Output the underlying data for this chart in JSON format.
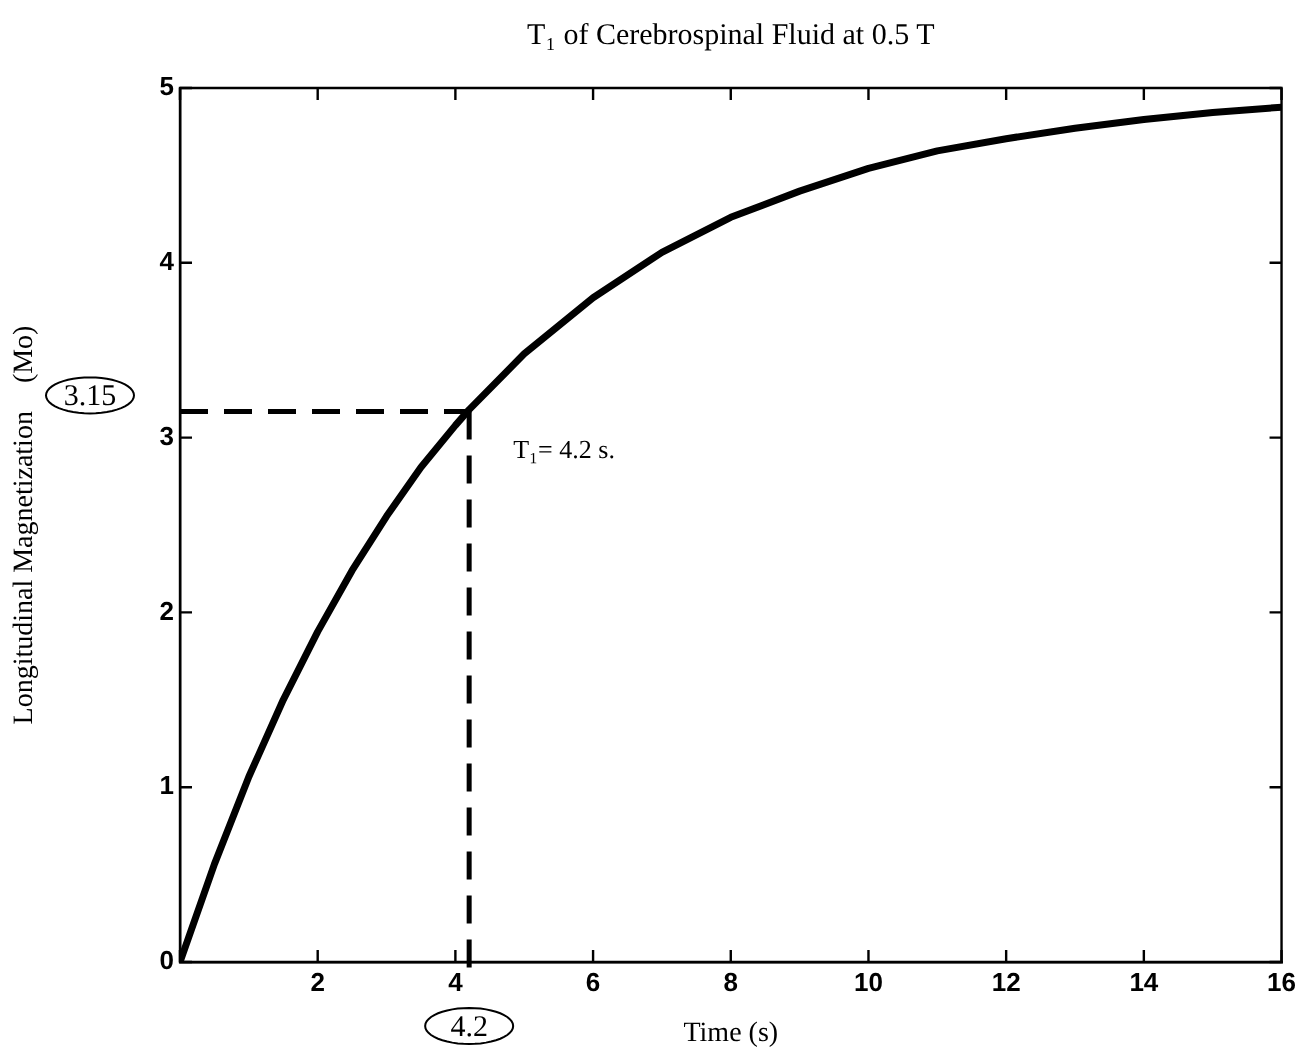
{
  "chart_data": {
    "type": "line",
    "title": "T₁ of Cerebrospinal Fluid at 0.5 T",
    "xlabel": "Time (s)",
    "ylabel": "Longitudinal Magnetization    (Mo)",
    "x": [
      0,
      0.5,
      1,
      1.5,
      2,
      2.5,
      3,
      3.5,
      4,
      4.2,
      5,
      6,
      7,
      8,
      9,
      10,
      11,
      12,
      13,
      14,
      15,
      16
    ],
    "series": [
      {
        "color": "#000000",
        "values": [
          0,
          0.56,
          1.06,
          1.5,
          1.89,
          2.24,
          2.55,
          2.83,
          3.07,
          3.16,
          3.48,
          3.8,
          4.06,
          4.26,
          4.41,
          4.54,
          4.64,
          4.71,
          4.77,
          4.82,
          4.86,
          4.89
        ]
      }
    ],
    "xlim": [
      0,
      16
    ],
    "ylim": [
      0,
      5
    ],
    "xticks": [
      {
        "value": 0,
        "label": null
      },
      2,
      4,
      6,
      8,
      10,
      12,
      14,
      16
    ],
    "yticks": [
      0,
      1,
      2,
      3,
      4,
      5
    ],
    "ref_lines": [
      {
        "axis": "y",
        "value": 3.15,
        "label": "3.15",
        "line_style": "dashed",
        "color": "#000000"
      },
      {
        "axis": "x",
        "value": 4.2,
        "label": "4.2",
        "line_style": "dashed",
        "color": "#000000"
      }
    ],
    "annotations": [
      "T₁= 4.2 s."
    ],
    "grid": false,
    "legend": false,
    "marker": "none",
    "line_style": "solid"
  }
}
